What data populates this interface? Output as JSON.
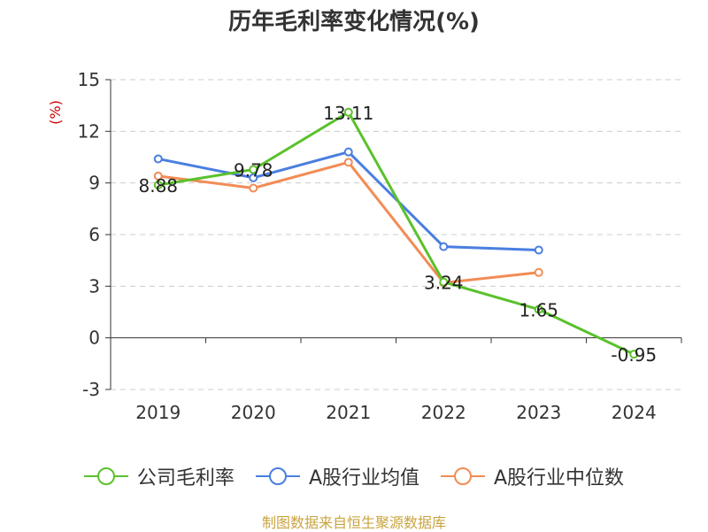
{
  "chart_data": {
    "type": "line",
    "title": "历年毛利率变化情况(%)",
    "ylabel": "(%)",
    "xlabel": "",
    "categories": [
      "2019",
      "2020",
      "2021",
      "2022",
      "2023",
      "2024"
    ],
    "ylim": [
      -3,
      15
    ],
    "yticks": [
      -3,
      0,
      3,
      6,
      9,
      12,
      15
    ],
    "grid": true,
    "legend_position": "bottom",
    "series": [
      {
        "name": "公司毛利率",
        "color": "#5ac12b",
        "values": [
          8.88,
          9.78,
          13.11,
          3.24,
          1.65,
          -0.95
        ],
        "data_labels": [
          "8.88",
          "9.78",
          "13.11",
          "3.24",
          "1.65",
          "-0.95"
        ]
      },
      {
        "name": "A股行业均值",
        "color": "#4a7ee0",
        "values": [
          10.4,
          9.3,
          10.8,
          5.3,
          5.1,
          null
        ]
      },
      {
        "name": "A股行业中位数",
        "color": "#f28c55",
        "values": [
          9.4,
          8.7,
          10.2,
          3.2,
          3.8,
          null
        ]
      }
    ]
  },
  "footer": {
    "source": "制图数据来自恒生聚源数据库"
  }
}
